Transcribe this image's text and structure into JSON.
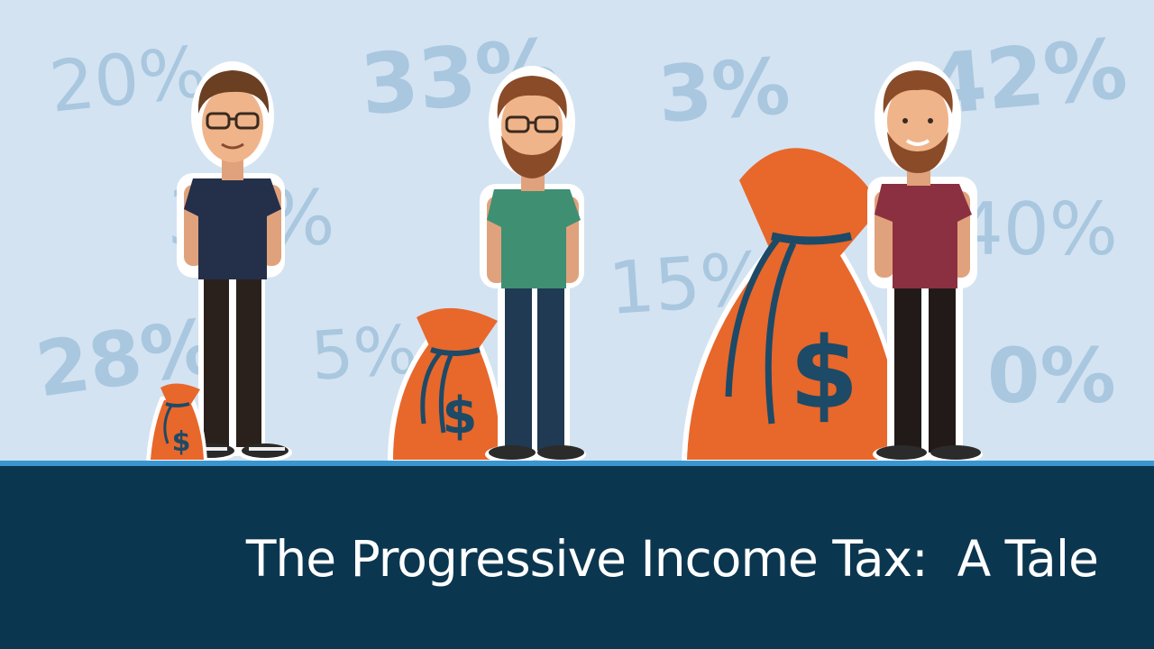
{
  "title": "The Progressive Income Tax:  A Tale",
  "background_percentages": [
    "20%",
    "33%",
    "3%",
    "42%",
    "35%",
    "15%",
    "40%",
    "28%",
    "5%",
    "0%"
  ],
  "bag_symbol": "$",
  "colors": {
    "background": "#d3e3f2",
    "percent_text": "#a9c7df",
    "bag": "#e8672b",
    "rope": "#1d4a66",
    "banner": "#0b3650",
    "floor_line": "#3a96cf",
    "title_text": "#ffffff"
  }
}
